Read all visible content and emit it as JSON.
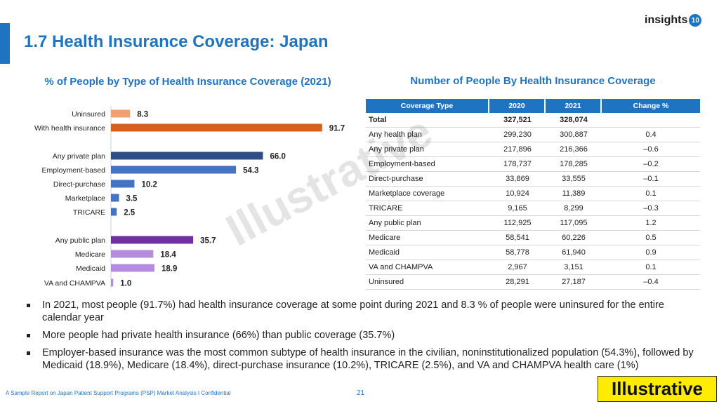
{
  "header": {
    "title": "1.7 Health Insurance Coverage: Japan",
    "logo_text": "insights",
    "logo_badge": "10",
    "brand_color": "#1f74c1"
  },
  "left_panel": {
    "title": "% of People by Type of Health Insurance Coverage (2021)"
  },
  "chart_data": {
    "type": "bar",
    "orientation": "horizontal",
    "title": "% of People by Type of Health Insurance Coverage (2021)",
    "categories": [
      "Uninsured",
      "With health insurance",
      "Any private plan",
      "Employment-based",
      "Direct-purchase",
      "Marketplace",
      "TRICARE",
      "Any public plan",
      "Medicare",
      "Medicaid",
      "VA and CHAMPVA"
    ],
    "values": [
      8.3,
      91.7,
      66.0,
      54.3,
      10.2,
      3.5,
      2.5,
      35.7,
      18.4,
      18.9,
      1.0
    ],
    "value_labels": [
      "8.3",
      "91.7",
      "66.0",
      "54.3",
      "10.2",
      "3.5",
      "2.5",
      "35.7",
      "18.4",
      "18.9",
      "1.0"
    ],
    "colors": [
      "#f0a070",
      "#d9601a",
      "#2e4e86",
      "#4472c4",
      "#4472c4",
      "#4472c4",
      "#4472c4",
      "#7030a0",
      "#b68ce0",
      "#b68ce0",
      "#b68ce0"
    ],
    "xlim": [
      0,
      100
    ],
    "grid": false,
    "legend": "none"
  },
  "right_panel": {
    "title": "Number of People By Health Insurance Coverage",
    "columns": [
      "Coverage Type",
      "2020",
      "2021",
      "Change %"
    ],
    "rows": [
      [
        "Total",
        "327,521",
        "328,074",
        ""
      ],
      [
        "Any health plan",
        "299,230",
        "300,887",
        "0.4"
      ],
      [
        "Any private plan",
        "217,896",
        "216,366",
        "–0.6"
      ],
      [
        "Employment-based",
        "178,737",
        "178,285",
        "–0.2"
      ],
      [
        "Direct-purchase",
        "33,869",
        "33,555",
        "–0.1"
      ],
      [
        "Marketplace coverage",
        "10,924",
        "11,389",
        "0.1"
      ],
      [
        "TRICARE",
        "9,165",
        "8,299",
        "–0.3"
      ],
      [
        "Any public plan",
        "112,925",
        "117,095",
        "1.2"
      ],
      [
        "Medicare",
        "58,541",
        "60,226",
        "0.5"
      ],
      [
        "Medicaid",
        "58,778",
        "61,940",
        "0.9"
      ],
      [
        "VA and CHAMPVA",
        "2,967",
        "3,151",
        "0.1"
      ],
      [
        "Uninsured",
        "28,291",
        "27,187",
        "–0.4"
      ]
    ]
  },
  "watermark": "Illustrative",
  "bullets": [
    "In 2021, most people (91.7%) had health insurance coverage at some point during 2021 and 8.3 % of people were uninsured for the entire calendar year",
    "More people had private health insurance (66%) than public coverage (35.7%)",
    "Employer-based insurance was the most common subtype of health insurance in the civilian, noninstitutionalized population (54.3%), followed by Medicaid (18.9%), Medicare (18.4%), direct-purchase insurance (10.2%), TRICARE (2.5%), and VA and CHAMPVA health care (1%)"
  ],
  "footer": {
    "text": "A Sample Report on Japan Patient Support Programs (PSP) Market Analysis I Confidential",
    "page": "21",
    "stamp": "Illustrative"
  }
}
